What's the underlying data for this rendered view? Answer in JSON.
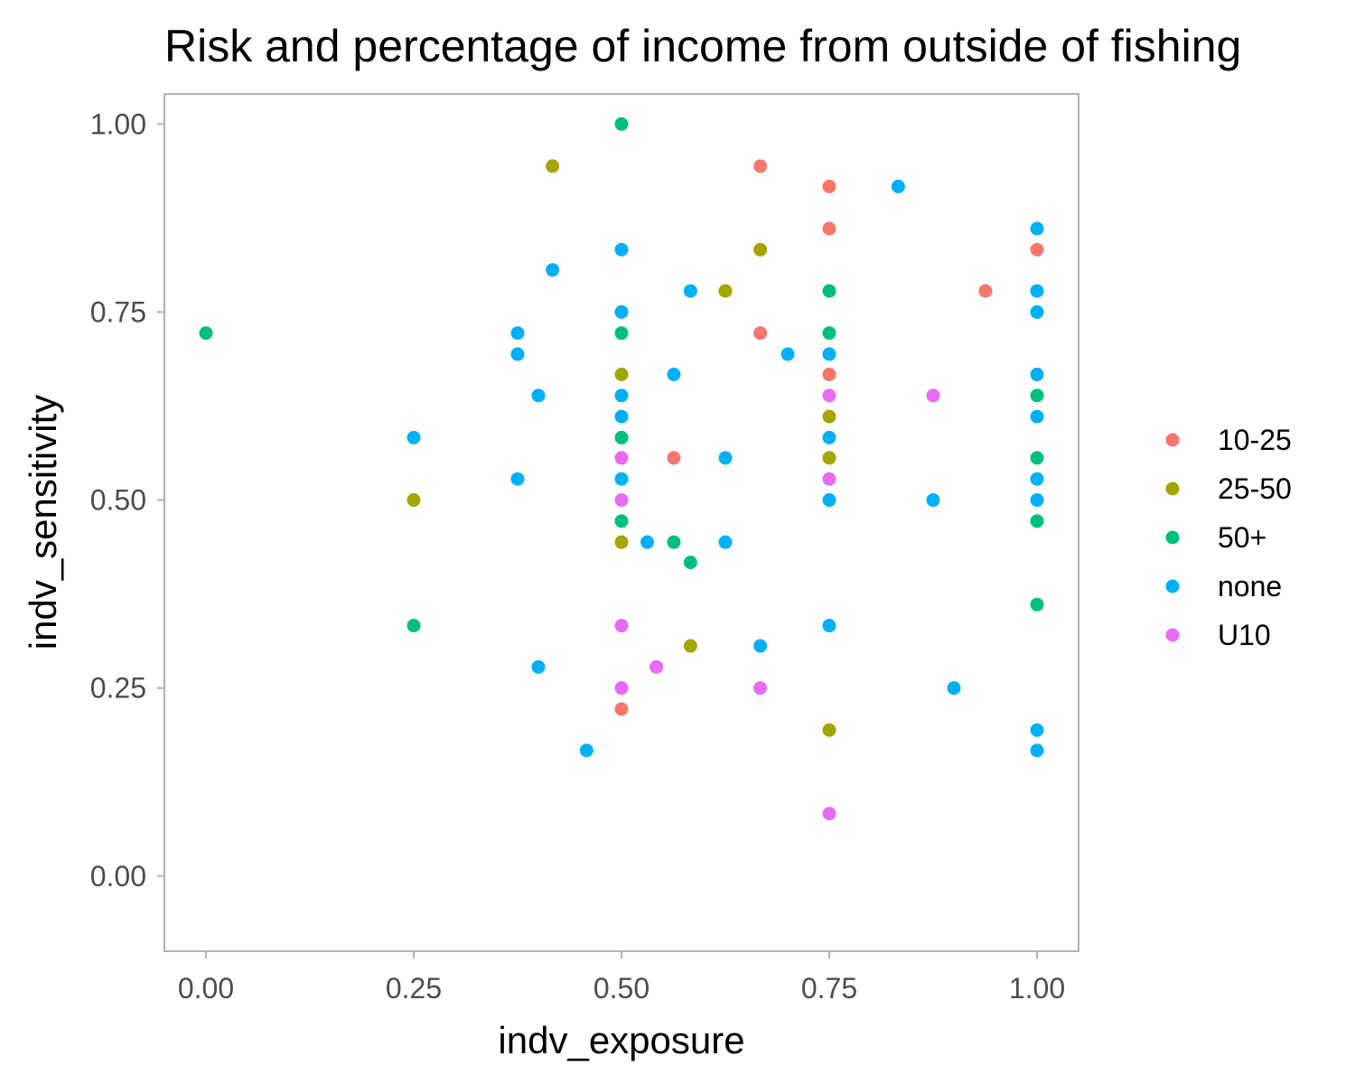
{
  "chart_data": {
    "type": "scatter",
    "title": "Risk and percentage of income from outside of fishing",
    "xlabel": "indv_exposure",
    "ylabel": "indv_sensitivity",
    "xlim": [
      -0.05,
      1.05
    ],
    "ylim": [
      -0.1,
      1.04
    ],
    "xticks": [
      "0.00",
      "0.25",
      "0.50",
      "0.75",
      "1.00"
    ],
    "yticks": [
      "0.00",
      "0.25",
      "0.50",
      "0.75",
      "1.00"
    ],
    "grid": false,
    "legend_position": "right",
    "series": [
      {
        "name": "10-25",
        "color": "#F8766D",
        "points": [
          [
            0.667,
            0.944
          ],
          [
            0.75,
            0.917
          ],
          [
            0.75,
            0.861
          ],
          [
            1.0,
            0.833
          ],
          [
            0.938,
            0.778
          ],
          [
            0.667,
            0.722
          ],
          [
            0.75,
            0.667
          ],
          [
            0.563,
            0.556
          ],
          [
            0.5,
            0.222
          ]
        ]
      },
      {
        "name": "25-50",
        "color": "#A3A500",
        "points": [
          [
            0.417,
            0.944
          ],
          [
            0.667,
            0.833
          ],
          [
            0.625,
            0.778
          ],
          [
            0.5,
            0.667
          ],
          [
            0.75,
            0.611
          ],
          [
            0.75,
            0.556
          ],
          [
            0.25,
            0.5
          ],
          [
            0.5,
            0.444
          ],
          [
            0.583,
            0.306
          ],
          [
            0.75,
            0.194
          ]
        ]
      },
      {
        "name": "50+",
        "color": "#00BF7D",
        "points": [
          [
            0.5,
            1.0
          ],
          [
            0.0,
            0.722
          ],
          [
            0.5,
            0.722
          ],
          [
            0.75,
            0.778
          ],
          [
            0.75,
            0.722
          ],
          [
            1.0,
            0.639
          ],
          [
            0.5,
            0.583
          ],
          [
            1.0,
            0.556
          ],
          [
            0.5,
            0.472
          ],
          [
            1.0,
            0.472
          ],
          [
            0.563,
            0.444
          ],
          [
            0.583,
            0.417
          ],
          [
            1.0,
            0.361
          ],
          [
            0.25,
            0.333
          ]
        ]
      },
      {
        "name": "none",
        "color": "#00B0F6",
        "points": [
          [
            0.833,
            0.917
          ],
          [
            1.0,
            0.861
          ],
          [
            0.5,
            0.833
          ],
          [
            0.417,
            0.806
          ],
          [
            0.583,
            0.778
          ],
          [
            1.0,
            0.778
          ],
          [
            0.5,
            0.75
          ],
          [
            1.0,
            0.75
          ],
          [
            0.375,
            0.722
          ],
          [
            0.375,
            0.694
          ],
          [
            0.7,
            0.694
          ],
          [
            0.75,
            0.694
          ],
          [
            0.563,
            0.667
          ],
          [
            1.0,
            0.667
          ],
          [
            0.4,
            0.639
          ],
          [
            0.5,
            0.639
          ],
          [
            0.5,
            0.611
          ],
          [
            1.0,
            0.611
          ],
          [
            0.25,
            0.583
          ],
          [
            0.75,
            0.583
          ],
          [
            0.625,
            0.556
          ],
          [
            0.375,
            0.528
          ],
          [
            0.5,
            0.528
          ],
          [
            1.0,
            0.528
          ],
          [
            0.75,
            0.5
          ],
          [
            0.875,
            0.5
          ],
          [
            1.0,
            0.5
          ],
          [
            0.531,
            0.444
          ],
          [
            0.625,
            0.444
          ],
          [
            0.75,
            0.333
          ],
          [
            0.667,
            0.306
          ],
          [
            0.4,
            0.278
          ],
          [
            0.9,
            0.25
          ],
          [
            1.0,
            0.194
          ],
          [
            0.458,
            0.167
          ],
          [
            1.0,
            0.167
          ]
        ]
      },
      {
        "name": "U10",
        "color": "#E76BF3",
        "points": [
          [
            0.75,
            0.639
          ],
          [
            0.875,
            0.639
          ],
          [
            0.5,
            0.556
          ],
          [
            0.75,
            0.528
          ],
          [
            0.5,
            0.5
          ],
          [
            0.5,
            0.333
          ],
          [
            0.542,
            0.278
          ],
          [
            0.5,
            0.25
          ],
          [
            0.667,
            0.25
          ],
          [
            0.75,
            0.083
          ]
        ]
      }
    ]
  }
}
